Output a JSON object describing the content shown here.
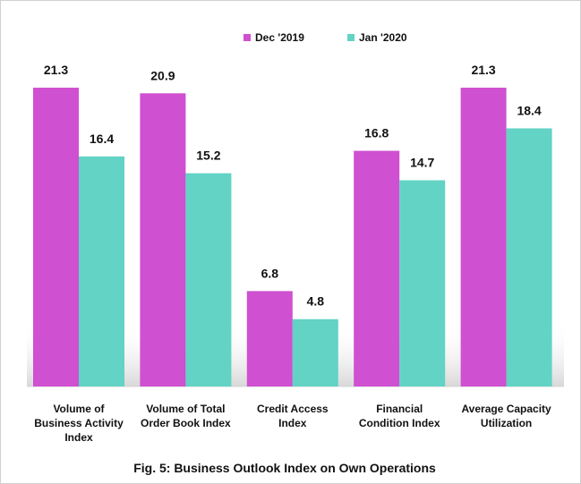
{
  "chart_data": {
    "type": "bar",
    "title": "Fig. 5: Business Outlook Index on Own Operations",
    "categories": [
      "Volume of Business Activity Index",
      "Volume of Total Order Book Index",
      "Credit Access Index",
      "Financial Condition Index",
      "Average Capacity Utilization"
    ],
    "series": [
      {
        "name": "Dec  '2019",
        "color": "#cf50d0",
        "values": [
          21.3,
          20.9,
          6.8,
          16.8,
          21.3
        ]
      },
      {
        "name": "Jan '2020",
        "color": "#62d3c4",
        "values": [
          16.4,
          15.2,
          4.8,
          14.7,
          18.4
        ]
      }
    ],
    "ylim": [
      0,
      25
    ],
    "legend": "top"
  }
}
